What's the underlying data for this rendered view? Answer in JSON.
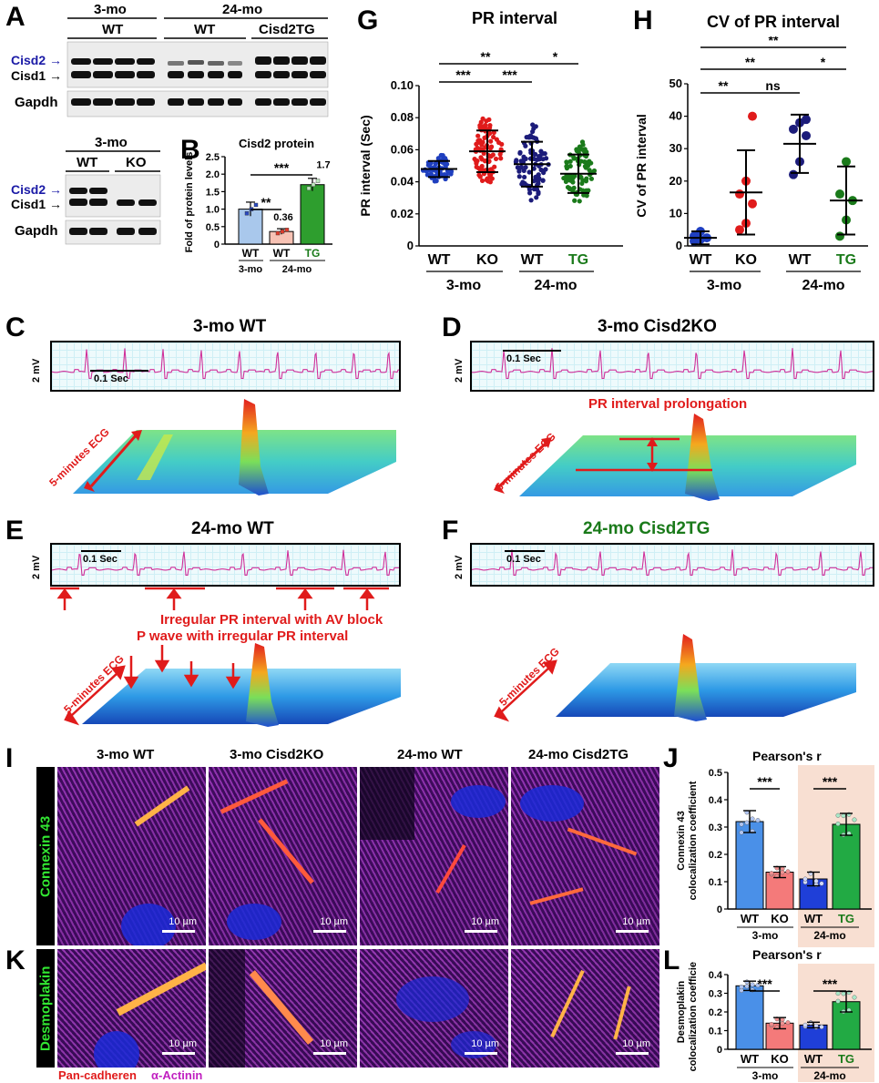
{
  "panels": {
    "A": "A",
    "B": "B",
    "C": "C",
    "D": "D",
    "E": "E",
    "F": "F",
    "G": "G",
    "H": "H",
    "I": "I",
    "J": "J",
    "K": "K",
    "L": "L"
  },
  "panel_a": {
    "top_blot": {
      "age_3mo": "3-mo",
      "age_24mo": "24-mo",
      "group_wt1": "WT",
      "group_wt2": "WT",
      "group_tg": "Cisd2TG",
      "band_cisd2": "Cisd2",
      "band_cisd1": "Cisd1",
      "loading": "Gapdh"
    },
    "bottom_blot": {
      "age_3mo": "3-mo",
      "group_wt": "WT",
      "group_ko": "KO",
      "band_cisd2": "Cisd2",
      "band_cisd1": "Cisd1",
      "loading": "Gapdh"
    }
  },
  "colors": {
    "cisd2_label": "#1a1aa6",
    "wt_3mo": "#1f3fbf",
    "ko_3mo": "#e01b1b",
    "wt_24mo": "#1c1c7a",
    "tg_24mo": "#1a7a1a",
    "bar_wt3": "#a9c8ec",
    "bar_wt24": "#f7c2b4",
    "bar_tg": "#2e9e2e",
    "annot_red": "#e01b1b",
    "tg_text": "#1a7a1a",
    "if_label_green": "#32e632",
    "legend_pan": "#e01b1b",
    "legend_actinin": "#c01fc0"
  },
  "panel_b": {
    "title": "Cisd2 protein",
    "ylabel": "Fold of protein levels",
    "x_labels": [
      "WT",
      "WT",
      "TG"
    ],
    "ages": [
      "3-mo",
      "24-mo"
    ],
    "annotations": [
      "0.36",
      "1.7"
    ],
    "sig": [
      "**",
      "***"
    ]
  },
  "panel_c": {
    "title": "3-mo WT",
    "scale": "0.1 Sec",
    "mv": "2 mV",
    "arrow": "5-minutes ECG"
  },
  "panel_d": {
    "title": "3-mo Cisd2KO",
    "scale": "0.1 Sec",
    "mv": "2 mV",
    "arrow": "5-minutes ECG",
    "note": "PR interval prolongation"
  },
  "panel_e": {
    "title": "24-mo WT",
    "scale": "0.1 Sec",
    "mv": "2 mV",
    "arrow": "5-minutes ECG",
    "note1": "Irregular PR interval with AV block",
    "note2": "P wave with irregular PR interval"
  },
  "panel_f": {
    "title": "24-mo Cisd2TG",
    "scale": "0.1 Sec",
    "mv": "2 mV",
    "arrow": "5-minutes ECG"
  },
  "panel_i": {
    "col_titles": [
      "3-mo WT",
      "3-mo Cisd2KO",
      "24-mo WT",
      "24-mo Cisd2TG"
    ],
    "row_label": "Connexin 43",
    "scale": "10 µm"
  },
  "panel_k": {
    "row_label": "Desmoplakin",
    "scale": "10 µm",
    "legend_pan": "Pan-cadheren",
    "legend_actinin": "α-Actinin"
  },
  "chart_data": [
    {
      "id": "B",
      "type": "bar",
      "title": "Cisd2 protein",
      "ylabel": "Fold of protein levels",
      "categories": [
        "3-mo WT",
        "24-mo WT",
        "24-mo TG"
      ],
      "values": [
        1.0,
        0.36,
        1.7
      ],
      "errors": [
        0.2,
        0.08,
        0.18
      ],
      "ylim": [
        0,
        2.5
      ],
      "yticks": [
        "0",
        "0.5",
        "1.0",
        "1.5",
        "2.0",
        "2.5"
      ]
    },
    {
      "id": "G",
      "type": "scatter",
      "title": "PR interval",
      "ylabel": "PR interval (Sec)",
      "categories": [
        "WT",
        "KO",
        "WT",
        "TG"
      ],
      "groups": [
        "3-mo",
        "24-mo"
      ],
      "means": [
        0.048,
        0.059,
        0.051,
        0.045
      ],
      "sd": [
        0.005,
        0.013,
        0.014,
        0.012
      ],
      "ylim": [
        0,
        0.1
      ],
      "yticks": [
        "0",
        "0.02",
        "0.04",
        "0.06",
        "0.08",
        "0.10"
      ],
      "sig": [
        "***",
        "***",
        "**",
        "*"
      ]
    },
    {
      "id": "H",
      "type": "scatter",
      "title": "CV of PR interval",
      "ylabel": "CV of PR interval",
      "categories": [
        "WT",
        "KO",
        "WT",
        "TG"
      ],
      "groups": [
        "3-mo",
        "24-mo"
      ],
      "means": [
        2.5,
        16.5,
        31.5,
        14
      ],
      "sd": [
        2,
        13,
        9,
        10.5
      ],
      "points": [
        [
          1.5,
          2,
          2.5,
          3,
          4.5
        ],
        [
          5,
          7,
          13,
          16,
          20,
          40
        ],
        [
          22,
          26,
          34,
          36,
          38,
          39
        ],
        [
          3,
          8,
          14,
          16,
          26
        ]
      ],
      "ylim": [
        0,
        50
      ],
      "yticks": [
        "0",
        "10",
        "20",
        "30",
        "40",
        "50"
      ],
      "sig": [
        "**",
        "ns",
        "*",
        "**",
        "**"
      ]
    },
    {
      "id": "J",
      "type": "bar",
      "title": "Pearson's r",
      "ylabel": "Connexin 43 colocalization coefficient",
      "categories": [
        "WT",
        "KO",
        "WT",
        "TG"
      ],
      "groups": [
        "3-mo",
        "24-mo"
      ],
      "values": [
        0.32,
        0.135,
        0.11,
        0.31
      ],
      "errors": [
        0.04,
        0.02,
        0.025,
        0.04
      ],
      "ylim": [
        0,
        0.5
      ],
      "yticks": [
        "0",
        "0.1",
        "0.2",
        "0.3",
        "0.4",
        "0.5"
      ],
      "sig": [
        "***",
        "***"
      ]
    },
    {
      "id": "L",
      "type": "bar",
      "title": "Pearson's r",
      "ylabel": "Desmoplakin colocalization coefficient",
      "categories": [
        "WT",
        "KO",
        "WT",
        "TG"
      ],
      "groups": [
        "3-mo",
        "24-mo"
      ],
      "values": [
        0.34,
        0.14,
        0.13,
        0.255
      ],
      "errors": [
        0.025,
        0.03,
        0.015,
        0.055
      ],
      "ylim": [
        0,
        0.4
      ],
      "yticks": [
        "0",
        "0.1",
        "0.2",
        "0.3",
        "0.4"
      ],
      "sig": [
        "***",
        "***"
      ]
    }
  ]
}
